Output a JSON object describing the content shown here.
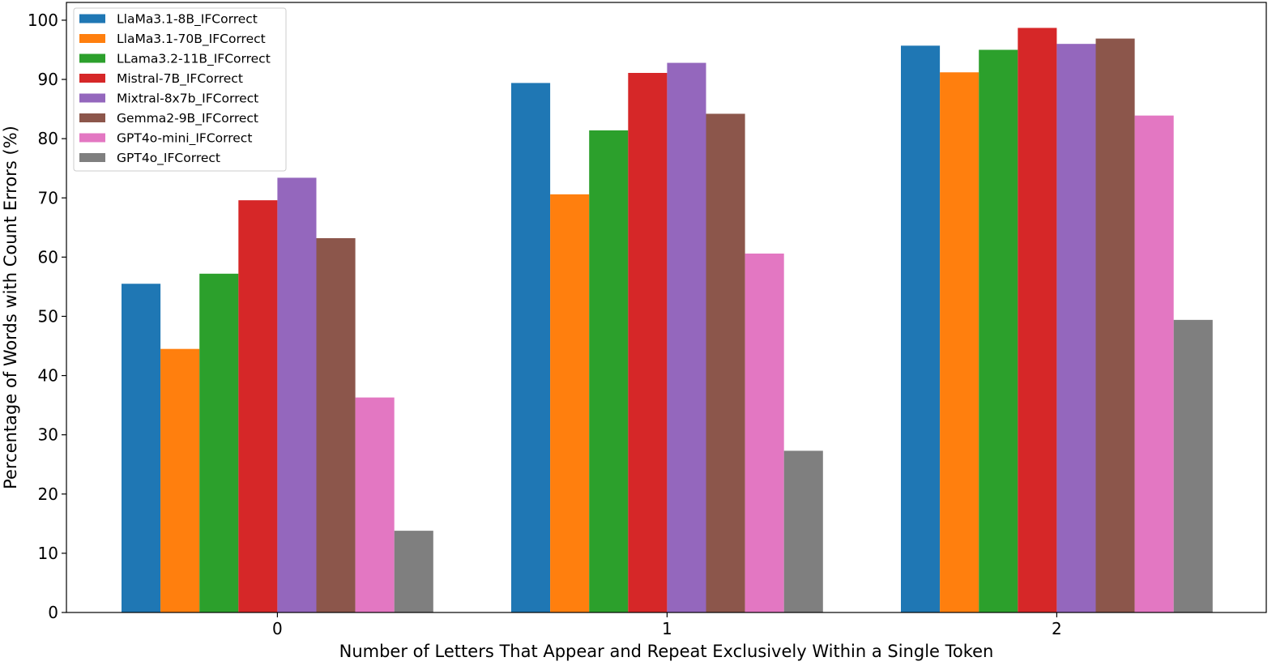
{
  "chart_data": {
    "type": "bar",
    "title": "",
    "xlabel": "Number of Letters That Appear and Repeat Exclusively Within a Single Token",
    "ylabel": "Percentage of Words with Count Errors (%)",
    "categories": [
      "0",
      "1",
      "2"
    ],
    "ylim": [
      0,
      103
    ],
    "yticks": [
      "0",
      "10",
      "20",
      "30",
      "40",
      "50",
      "60",
      "70",
      "80",
      "90",
      "100"
    ],
    "grid": false,
    "legend_position": "top-left",
    "series": [
      {
        "name": "LlaMa3.1-8B_IFCorrect",
        "color": "#1f77b4",
        "values": [
          55.5,
          89.4,
          95.7
        ]
      },
      {
        "name": "LlaMa3.1-70B_IFCorrect",
        "color": "#ff7f0e",
        "values": [
          44.5,
          70.6,
          91.2
        ]
      },
      {
        "name": "LLama3.2-11B_IFCorrect",
        "color": "#2ca02c",
        "values": [
          57.2,
          81.4,
          95.0
        ]
      },
      {
        "name": "Mistral-7B_IFCorrect",
        "color": "#d62728",
        "values": [
          69.6,
          91.1,
          98.7
        ]
      },
      {
        "name": "Mixtral-8x7b_IFCorrect",
        "color": "#9467bd",
        "values": [
          73.4,
          92.8,
          96.0
        ]
      },
      {
        "name": "Gemma2-9B_IFCorrect",
        "color": "#8c564b",
        "values": [
          63.2,
          84.2,
          96.9
        ]
      },
      {
        "name": "GPT4o-mini_IFCorrect",
        "color": "#e377c2",
        "values": [
          36.3,
          60.6,
          83.9
        ]
      },
      {
        "name": "GPT4o_IFCorrect",
        "color": "#7f7f7f",
        "values": [
          13.8,
          27.3,
          49.4
        ]
      }
    ]
  }
}
